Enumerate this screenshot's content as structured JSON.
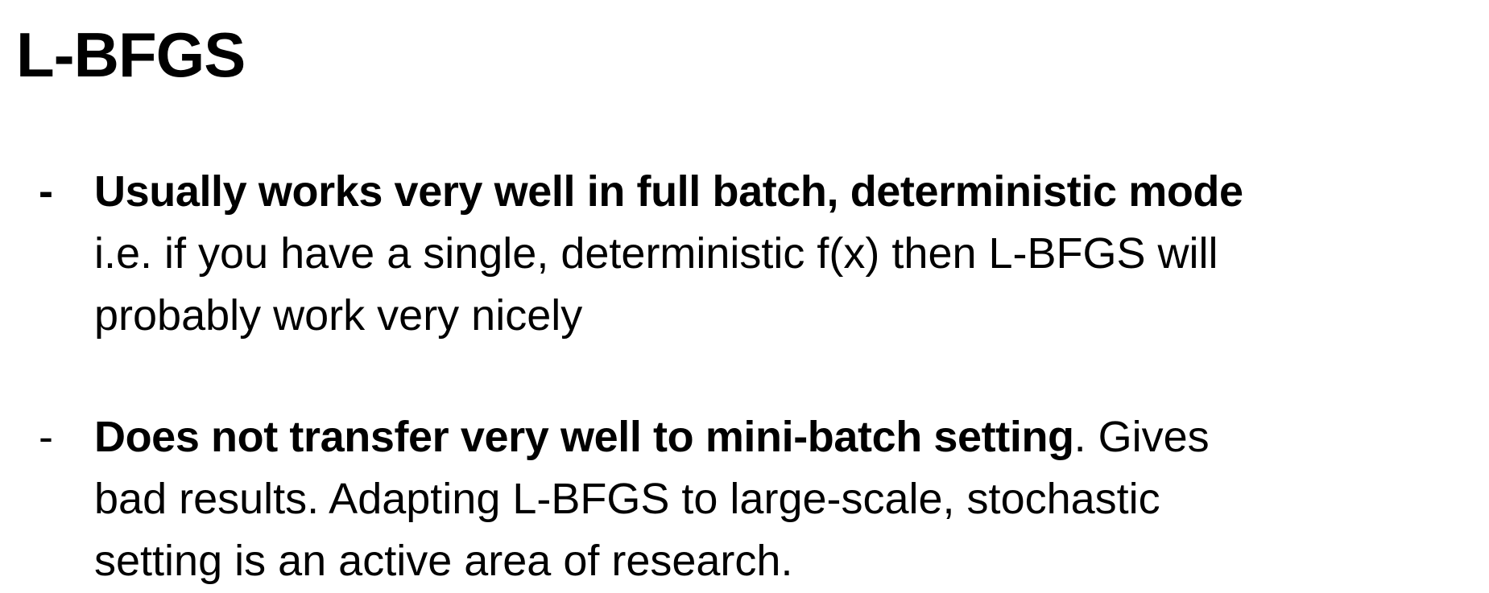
{
  "slide": {
    "title": "L-BFGS",
    "bullets": [
      {
        "marker": "-",
        "bold_text": "Usually works very well in full batch, deterministic mode",
        "lines": [
          "i.e. if you have a single, deterministic f(x) then L-BFGS will",
          "probably work very nicely"
        ]
      },
      {
        "marker": "-",
        "bold_text": "Does not transfer very well to mini-batch setting",
        "tail": ". Gives",
        "lines": [
          "bad results. Adapting L-BFGS to large-scale, stochastic",
          "setting is an active area of research."
        ]
      }
    ]
  }
}
